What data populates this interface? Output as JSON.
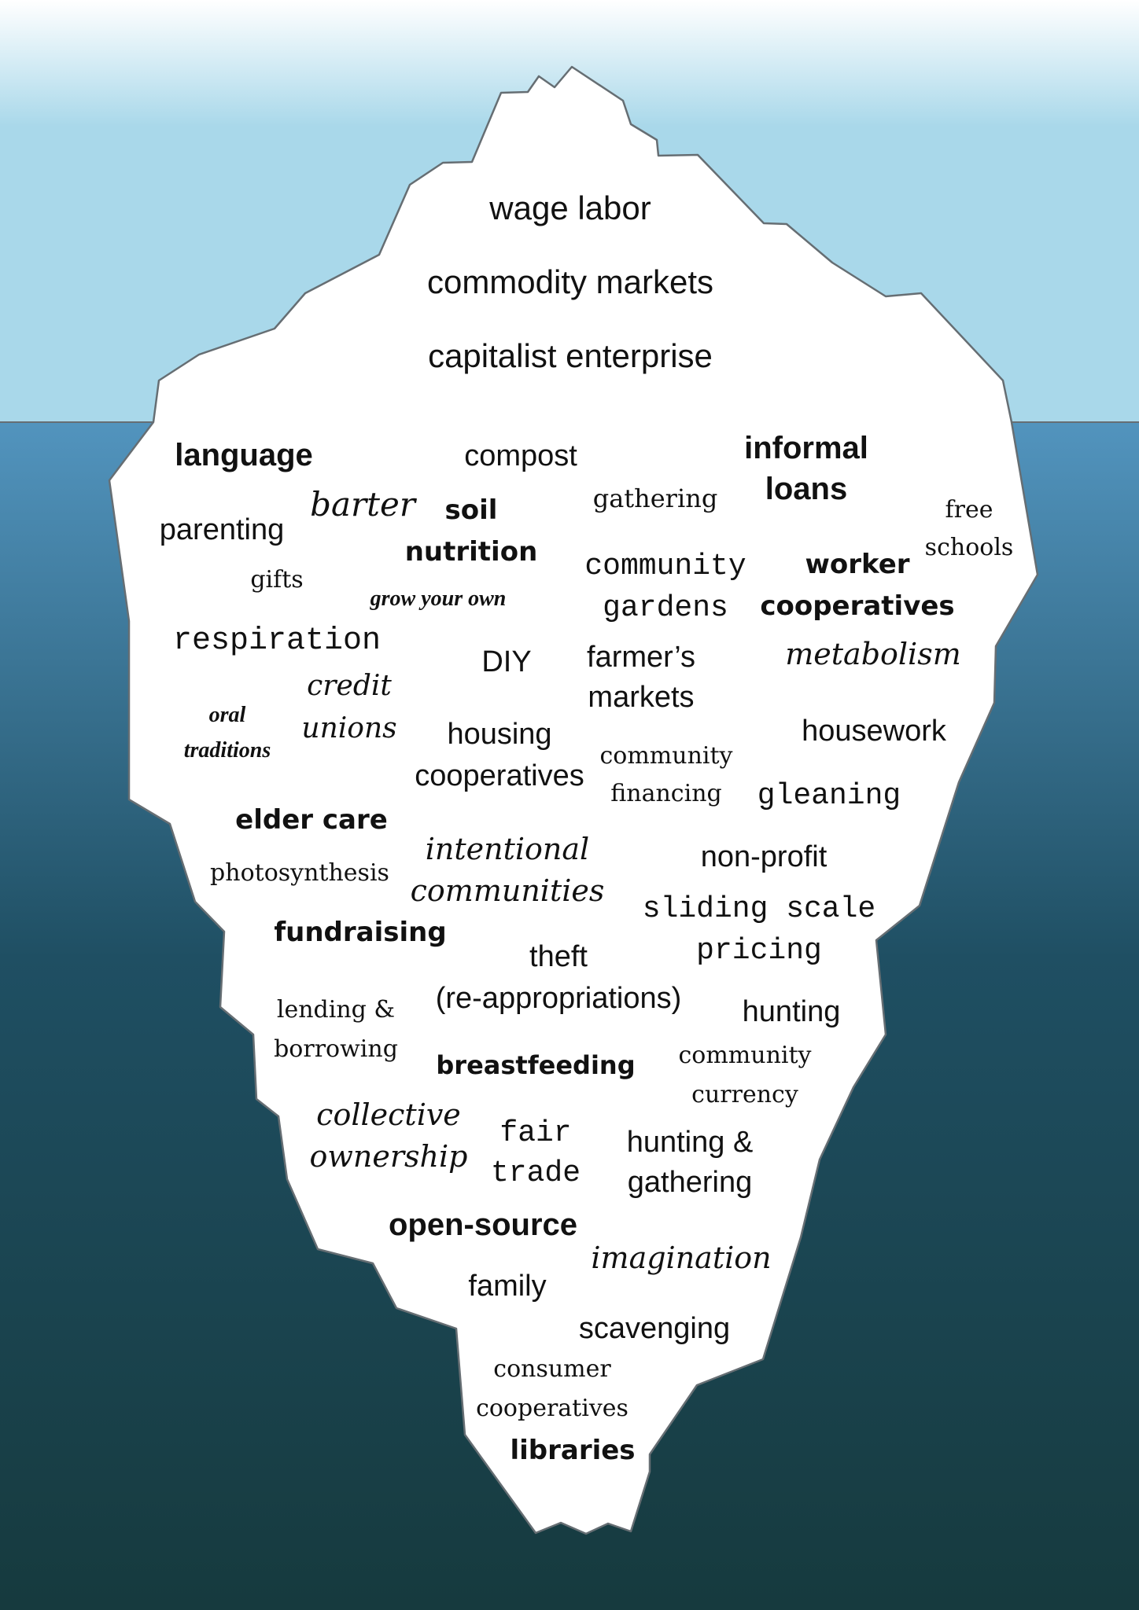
{
  "colors": {
    "sky_top": "#ffffff",
    "sky_bottom": "#a9d8ea",
    "sea_top": "#5294be",
    "sea_mid": "#1f4f63",
    "sea_bottom": "#163a3e",
    "iceberg": "#ffffff",
    "iceberg_outline": "#666e73",
    "text": "#111111"
  },
  "above_water": {
    "items": [
      {
        "id": "wage-labor",
        "lines": [
          "wage labor"
        ]
      },
      {
        "id": "commodity-markets",
        "lines": [
          "commodity markets"
        ]
      },
      {
        "id": "capitalist-enterprise",
        "lines": [
          "capitalist enterprise"
        ]
      }
    ]
  },
  "below_water": {
    "items": [
      {
        "id": "language",
        "lines": [
          "language"
        ]
      },
      {
        "id": "compost",
        "lines": [
          "compost"
        ]
      },
      {
        "id": "informal-loans",
        "lines": [
          "informal",
          "loans"
        ]
      },
      {
        "id": "barter",
        "lines": [
          "barter"
        ]
      },
      {
        "id": "soil-nutrition",
        "lines": [
          "soil",
          "nutrition"
        ]
      },
      {
        "id": "gathering",
        "lines": [
          "gathering"
        ]
      },
      {
        "id": "free-schools",
        "lines": [
          "free",
          "schools"
        ]
      },
      {
        "id": "parenting",
        "lines": [
          "parenting"
        ]
      },
      {
        "id": "community-gardens",
        "lines": [
          "community",
          "gardens"
        ]
      },
      {
        "id": "worker-cooperatives",
        "lines": [
          "worker",
          "cooperatives"
        ]
      },
      {
        "id": "gifts",
        "lines": [
          "gifts"
        ]
      },
      {
        "id": "grow-your-own",
        "lines": [
          "grow your own"
        ]
      },
      {
        "id": "respiration",
        "lines": [
          "respiration"
        ]
      },
      {
        "id": "diy",
        "lines": [
          "DIY"
        ]
      },
      {
        "id": "farmers-markets",
        "lines": [
          "farmer’s",
          "markets"
        ]
      },
      {
        "id": "metabolism",
        "lines": [
          "metabolism"
        ]
      },
      {
        "id": "credit-unions",
        "lines": [
          "credit",
          "unions"
        ]
      },
      {
        "id": "oral-traditions",
        "lines": [
          "oral",
          "traditions"
        ]
      },
      {
        "id": "housing-cooperatives",
        "lines": [
          "housing",
          "cooperatives"
        ]
      },
      {
        "id": "community-financing",
        "lines": [
          "community",
          "financing"
        ]
      },
      {
        "id": "housework",
        "lines": [
          "housework"
        ]
      },
      {
        "id": "gleaning",
        "lines": [
          "gleaning"
        ]
      },
      {
        "id": "elder-care",
        "lines": [
          "elder care"
        ]
      },
      {
        "id": "photosynthesis",
        "lines": [
          "photosynthesis"
        ]
      },
      {
        "id": "intentional-communities",
        "lines": [
          "intentional",
          "communities"
        ]
      },
      {
        "id": "non-profit",
        "lines": [
          "non-profit"
        ]
      },
      {
        "id": "sliding-scale-pricing",
        "lines": [
          "sliding scale",
          "pricing"
        ]
      },
      {
        "id": "fundraising",
        "lines": [
          "fundraising"
        ]
      },
      {
        "id": "theft",
        "lines": [
          "theft",
          "(re-appropriations)"
        ]
      },
      {
        "id": "lending-borrowing",
        "lines": [
          "lending &",
          "borrowing"
        ]
      },
      {
        "id": "hunting",
        "lines": [
          "hunting"
        ]
      },
      {
        "id": "community-currency",
        "lines": [
          "community",
          "currency"
        ]
      },
      {
        "id": "breastfeeding",
        "lines": [
          "breastfeeding"
        ]
      },
      {
        "id": "collective-ownership",
        "lines": [
          "collective",
          "ownership"
        ]
      },
      {
        "id": "fair-trade",
        "lines": [
          "fair",
          "trade"
        ]
      },
      {
        "id": "hunting-gathering",
        "lines": [
          "hunting &",
          "gathering"
        ]
      },
      {
        "id": "open-source",
        "lines": [
          "open-source"
        ]
      },
      {
        "id": "imagination",
        "lines": [
          "imagination"
        ]
      },
      {
        "id": "family",
        "lines": [
          "family"
        ]
      },
      {
        "id": "scavenging",
        "lines": [
          "scavenging"
        ]
      },
      {
        "id": "consumer-cooperatives",
        "lines": [
          "consumer",
          "cooperatives"
        ]
      },
      {
        "id": "libraries",
        "lines": [
          "libraries"
        ]
      }
    ]
  }
}
